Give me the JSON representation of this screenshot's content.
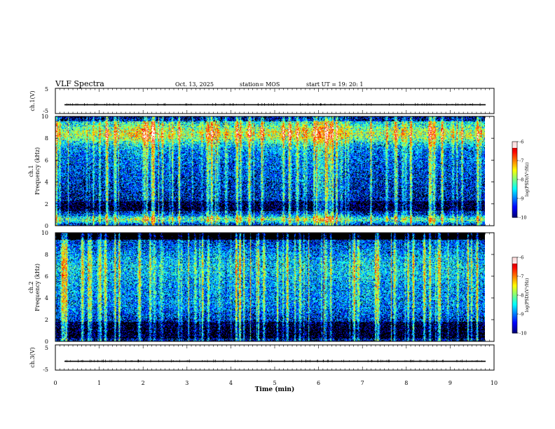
{
  "header": {
    "title": "VLF Spectra",
    "date": "Oct. 13, 2025",
    "station": "station= MOS",
    "start": "start  UT  =    19: 20: 1"
  },
  "chart_data": [
    {
      "type": "line",
      "name": "ch1-waveform",
      "ylabel": "ch.1(V)",
      "ylim": [
        -5,
        5
      ],
      "yticks": [
        "5",
        "-5"
      ],
      "level": -1.5,
      "xlim": [
        0,
        10
      ]
    },
    {
      "type": "heatmap",
      "name": "ch1-spectrogram",
      "ylabel_top": "ch.1",
      "ylabel": "Frequency (kHz)",
      "ylim": [
        0,
        10
      ],
      "yticks": [
        "0",
        "2",
        "4",
        "6",
        "8",
        "10"
      ],
      "xlim": [
        0,
        9.85
      ],
      "colorbar": {
        "label": "log(PSD)(V²/Hz)",
        "min": -10,
        "max": -6,
        "ticks": [
          "-6",
          "-7",
          "-8",
          "-9",
          "-10"
        ]
      }
    },
    {
      "type": "heatmap",
      "name": "ch2-spectrogram",
      "ylabel_top": "ch.2",
      "ylabel": "Frequency (kHz)",
      "ylim": [
        0,
        10
      ],
      "yticks": [
        "0",
        "2",
        "4",
        "6",
        "8",
        "10"
      ],
      "xlim": [
        0,
        9.85
      ],
      "colorbar": {
        "label": "log(PSD)(V²/Hz)",
        "min": -10,
        "max": -6,
        "ticks": [
          "-6",
          "-7",
          "-8",
          "-9",
          "-10"
        ]
      }
    },
    {
      "type": "line",
      "name": "ch3-waveform",
      "ylabel": "ch.3(V)",
      "ylim": [
        -5,
        5
      ],
      "yticks": [
        "5",
        "-5"
      ],
      "level": -1.5,
      "xlim": [
        0,
        10
      ],
      "xlabel": "Time (min)",
      "xticks": [
        "0",
        "1",
        "2",
        "3",
        "4",
        "5",
        "6",
        "7",
        "8",
        "9",
        "10"
      ]
    }
  ]
}
